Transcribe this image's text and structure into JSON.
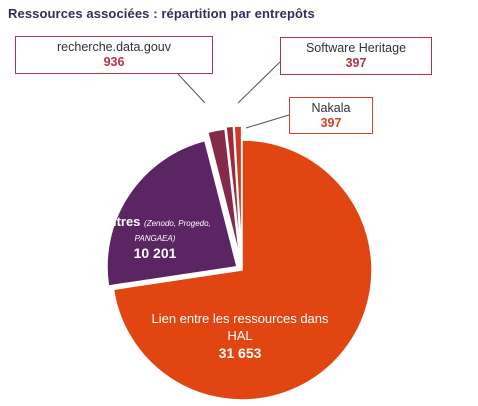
{
  "chart_data": {
    "type": "pie",
    "title": "Ressources associées : répartition par entrepôts",
    "slices": [
      {
        "label": "Lien entre les ressources dans HAL",
        "value": 31653,
        "value_label": "31 653",
        "color": "#e04512"
      },
      {
        "label": "Autres",
        "note": "(Zenodo, Progedo, PANGAEA)",
        "value": 10201,
        "value_label": "10 201",
        "color": "#5a2562"
      },
      {
        "label": "recherche.data.gouv",
        "value": 936,
        "value_label": "936",
        "color": "#862a4c"
      },
      {
        "label": "Software Heritage",
        "value": 397,
        "value_label": "397",
        "color": "#a12a38"
      },
      {
        "label": "Nakala",
        "value": 397,
        "value_label": "397",
        "color": "#cf3a22"
      }
    ]
  }
}
